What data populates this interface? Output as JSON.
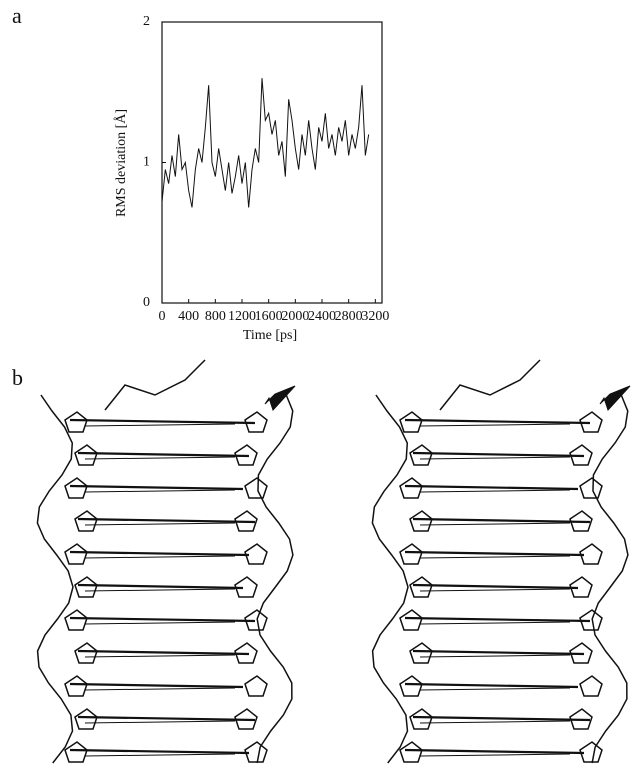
{
  "chart_data": {
    "type": "line",
    "panel_label": "a",
    "ylabel": "RMS deviation [Å]",
    "xlabel": "Time [ps]",
    "x": [
      0,
      50,
      100,
      150,
      200,
      250,
      300,
      350,
      400,
      450,
      500,
      550,
      600,
      650,
      700,
      750,
      800,
      850,
      900,
      950,
      1000,
      1050,
      1100,
      1150,
      1200,
      1250,
      1300,
      1350,
      1400,
      1450,
      1500,
      1550,
      1600,
      1650,
      1700,
      1750,
      1800,
      1850,
      1900,
      1950,
      2000,
      2050,
      2100,
      2150,
      2200,
      2250,
      2300,
      2350,
      2400,
      2450,
      2500,
      2550,
      2600,
      2650,
      2700,
      2750,
      2800,
      2850,
      2900,
      2950,
      3000,
      3050,
      3100
    ],
    "series": [
      {
        "color": "#111111",
        "values": [
          0.72,
          0.95,
          0.85,
          1.05,
          0.9,
          1.2,
          0.95,
          1.0,
          0.8,
          0.68,
          0.95,
          1.1,
          1.0,
          1.25,
          1.55,
          1.0,
          0.9,
          1.1,
          0.95,
          0.8,
          1.0,
          0.78,
          0.9,
          1.05,
          0.85,
          1.0,
          0.68,
          0.95,
          1.1,
          1.0,
          1.6,
          1.3,
          1.35,
          1.2,
          1.3,
          1.05,
          1.15,
          0.9,
          1.45,
          1.3,
          1.1,
          0.95,
          1.2,
          1.05,
          1.3,
          1.1,
          0.95,
          1.25,
          1.15,
          1.35,
          1.1,
          1.2,
          1.05,
          1.25,
          1.15,
          1.3,
          1.05,
          1.2,
          1.1,
          1.25,
          1.55,
          1.05,
          1.2
        ]
      }
    ],
    "xlim": [
      0,
      3300
    ],
    "ylim": [
      0,
      2
    ],
    "xticks": [
      0,
      400,
      800,
      1200,
      1600,
      2000,
      2400,
      2800,
      3200
    ],
    "yticks": [
      0,
      1,
      2
    ]
  },
  "figure": {
    "panel_b_label": "b"
  }
}
